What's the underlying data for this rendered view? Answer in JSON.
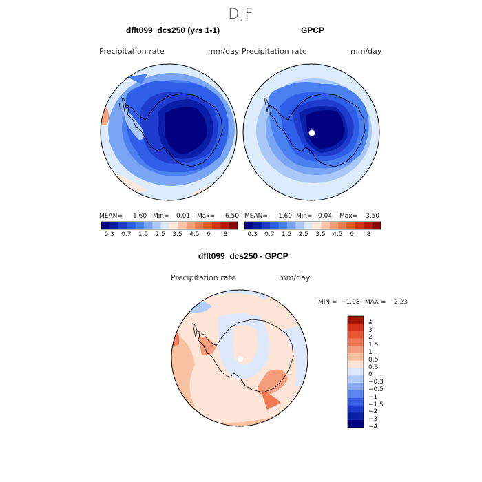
{
  "season": "DJF",
  "panels": {
    "model": {
      "title": "dflt099_dcs250 (yrs 1-1)",
      "field": "Precipitation rate",
      "units": "mm/day",
      "stats": {
        "mean_label": "MEAN=",
        "mean": "1.60",
        "min_label": "Min=",
        "min": "0.01",
        "max_label": "Max=",
        "max": "6.50"
      }
    },
    "obs": {
      "title": "GPCP",
      "field": "Precipitation rate",
      "units": "mm/day",
      "stats": {
        "mean_label": "MEAN=",
        "mean": "1.60",
        "min_label": "Min=",
        "min": "0.04",
        "max_label": "Max=",
        "max": "3.50"
      }
    },
    "diff": {
      "title": "dflt099_dcs250 - GPCP",
      "field": "Precipitation rate",
      "units": "mm/day",
      "stats": {
        "min_label": "MIN =",
        "min": "−1.08",
        "max_label": "MAX =",
        "max": "2.23"
      }
    }
  },
  "colorbar_abs": {
    "colors": [
      "#000080",
      "#0a1fa8",
      "#1f3ccf",
      "#2f5ee8",
      "#4a80f0",
      "#7aa5f5",
      "#a9c8f8",
      "#dcecfb",
      "#fde9dd",
      "#f9c6a8",
      "#f4a27c",
      "#ee7d52",
      "#e6582e",
      "#d7341a",
      "#bb1b0e",
      "#8b0a05"
    ],
    "labels": [
      "0.3",
      "0.7",
      "1.5",
      "2.5",
      "3.5",
      "4.5",
      "6",
      "8"
    ]
  },
  "colorbar_diff": {
    "colors": [
      "#000080",
      "#0b1fa5",
      "#1f3bcc",
      "#3760e6",
      "#5b86f0",
      "#88aaf3",
      "#b4cdf8",
      "#dde9fb",
      "#fce4d6",
      "#f8c1a2",
      "#f39f7e",
      "#ee7b55",
      "#e65530",
      "#d6331c",
      "#a11506"
    ],
    "labels": [
      "4",
      "3",
      "2",
      "1.5",
      "1",
      "0.5",
      "0.3",
      "0",
      "−0.3",
      "−0.5",
      "−1",
      "−1.5",
      "−2",
      "−3",
      "−4"
    ]
  }
}
